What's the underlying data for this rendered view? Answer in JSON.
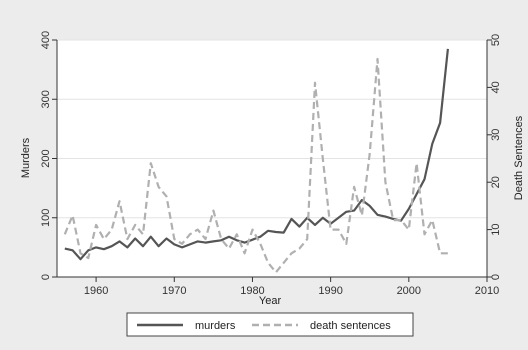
{
  "chart_data": {
    "type": "line",
    "xlabel": "Year",
    "ylabel_left": "Murders",
    "ylabel_right": "Death Sentences",
    "xlim": [
      1955,
      2010
    ],
    "ylim_left": [
      0,
      400
    ],
    "ylim_right": [
      0,
      50
    ],
    "x_ticks": [
      1960,
      1970,
      1980,
      1990,
      2000,
      2010
    ],
    "y_ticks_left": [
      0,
      100,
      200,
      300,
      400
    ],
    "y_ticks_right": [
      0,
      10,
      20,
      30,
      40,
      50
    ],
    "grid": true,
    "legend_position": "bottom",
    "series": [
      {
        "name": "murders",
        "axis": "left",
        "style": "solid",
        "color": "#555555",
        "x": [
          1956,
          1957,
          1958,
          1959,
          1960,
          1961,
          1962,
          1963,
          1964,
          1965,
          1966,
          1967,
          1968,
          1969,
          1970,
          1971,
          1972,
          1973,
          1974,
          1975,
          1976,
          1977,
          1978,
          1979,
          1980,
          1981,
          1982,
          1983,
          1984,
          1985,
          1986,
          1987,
          1988,
          1989,
          1990,
          1991,
          1992,
          1993,
          1994,
          1995,
          1996,
          1997,
          1998,
          1999,
          2000,
          2001,
          2002,
          2003,
          2004,
          2005
        ],
        "values": [
          48,
          45,
          30,
          45,
          50,
          47,
          52,
          60,
          50,
          65,
          52,
          68,
          52,
          65,
          55,
          50,
          55,
          60,
          58,
          60,
          62,
          68,
          62,
          58,
          63,
          68,
          78,
          76,
          75,
          98,
          85,
          100,
          88,
          100,
          90,
          100,
          110,
          112,
          130,
          120,
          105,
          102,
          98,
          95,
          115,
          140,
          165,
          225,
          260,
          385
        ]
      },
      {
        "name": "death sentences",
        "axis": "right",
        "style": "dashed",
        "color": "#b0b0b0",
        "x": [
          1956,
          1957,
          1958,
          1959,
          1960,
          1961,
          1962,
          1963,
          1964,
          1965,
          1966,
          1967,
          1968,
          1969,
          1970,
          1971,
          1972,
          1973,
          1974,
          1975,
          1976,
          1977,
          1978,
          1979,
          1980,
          1981,
          1982,
          1983,
          1984,
          1985,
          1986,
          1987,
          1988,
          1989,
          1990,
          1991,
          1992,
          1993,
          1994,
          1995,
          1996,
          1997,
          1998,
          1999,
          2000,
          2001,
          2002,
          2003,
          2004,
          2005
        ],
        "values": [
          9,
          13,
          5,
          4,
          11,
          8,
          10,
          16,
          8,
          11,
          9,
          24,
          19,
          17,
          8,
          7,
          9,
          10,
          8,
          14,
          8,
          6,
          9,
          5,
          10,
          7,
          3,
          1,
          3,
          5,
          6,
          8,
          41,
          25,
          10,
          10,
          7,
          19,
          13,
          26,
          46,
          20,
          12,
          12,
          10,
          24,
          9,
          12,
          5,
          5
        ]
      }
    ]
  }
}
